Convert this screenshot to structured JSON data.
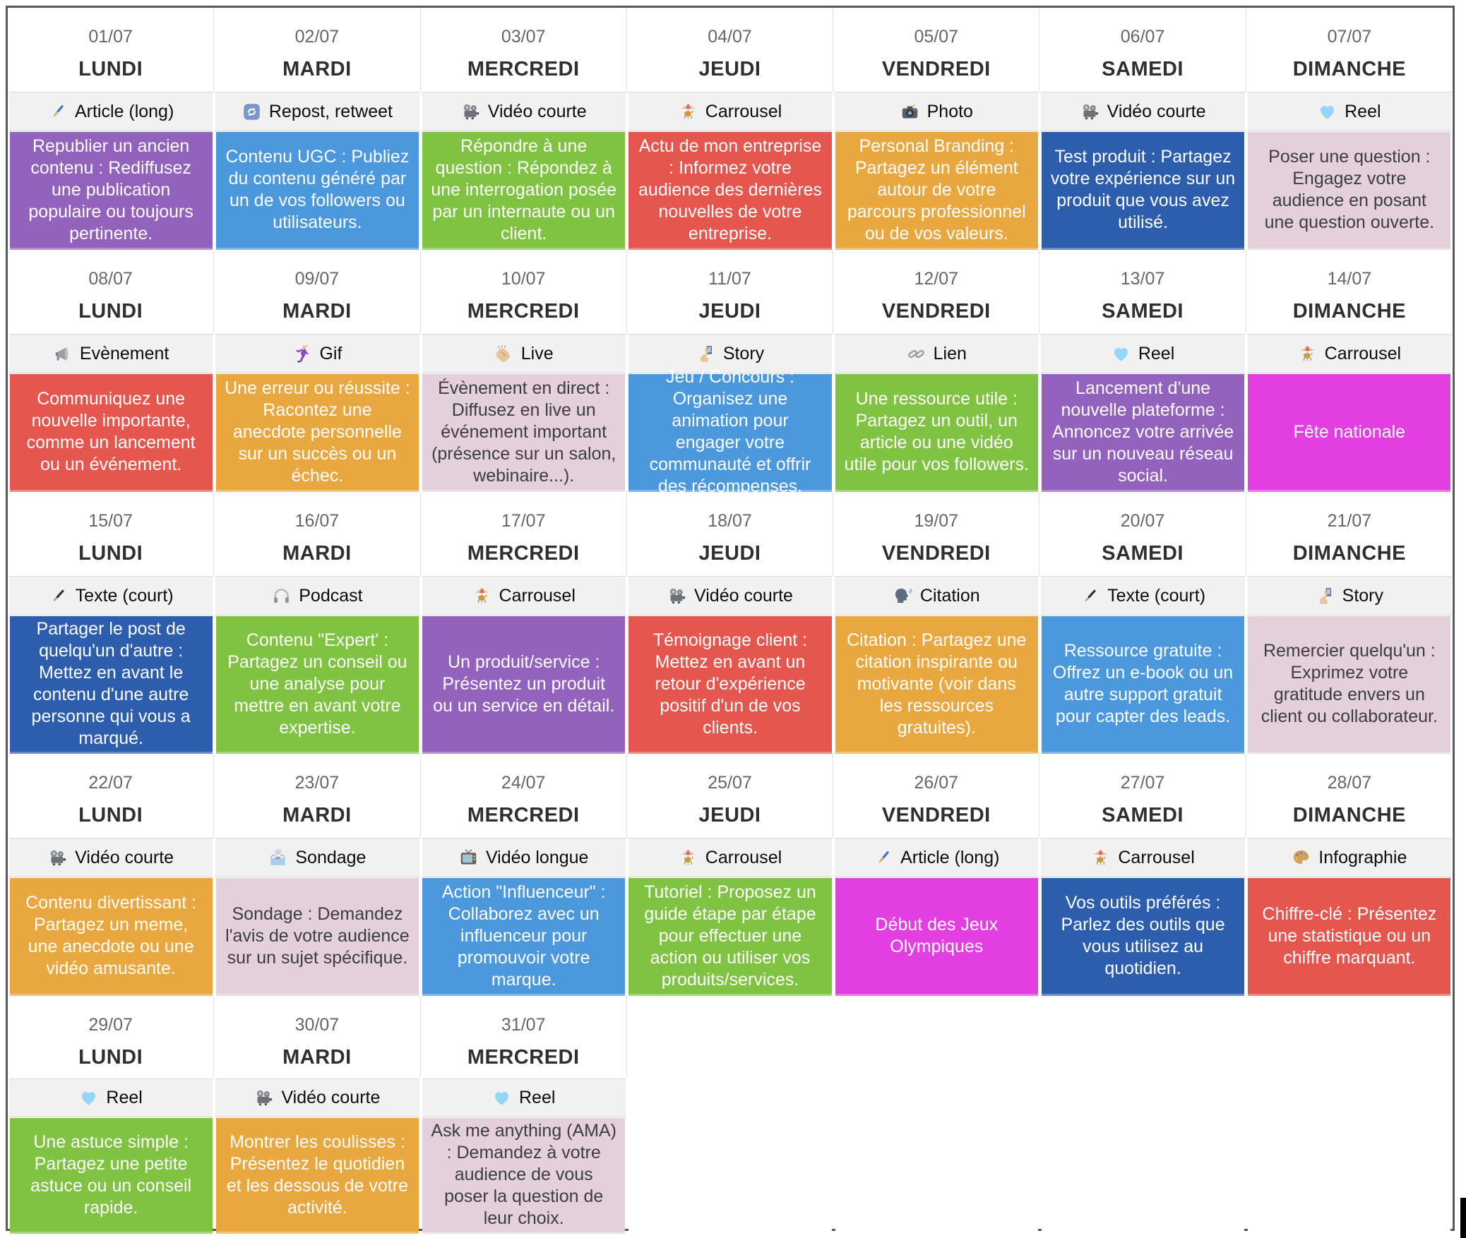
{
  "calendar": {
    "colors": {
      "purple": "#9362BD",
      "blue": "#4B98DC",
      "green": "#80C241",
      "red": "#E4564E",
      "orange": "#E9A83F",
      "darkblue": "#2D5DAD",
      "lavender": "#E3D0DA",
      "magenta": "#E23EE2"
    },
    "weeks": [
      {
        "days": [
          {
            "date": "01/07",
            "day": "LUNDI",
            "type": {
              "icon": "paintbrush-icon",
              "label": "Article (long)"
            },
            "content": {
              "color": "purple",
              "text": "Republier un ancien contenu : Rediffusez une publication populaire ou toujours pertinente."
            }
          },
          {
            "date": "02/07",
            "day": "MARDI",
            "type": {
              "icon": "repeat-icon",
              "label": "Repost, retweet"
            },
            "content": {
              "color": "blue",
              "text": "Contenu UGC :  Publiez du contenu généré par un de vos followers ou utilisateurs."
            }
          },
          {
            "date": "03/07",
            "day": "MERCREDI",
            "type": {
              "icon": "film-projector-icon",
              "label": "Vidéo courte"
            },
            "content": {
              "color": "green",
              "text": "Répondre à une question : Répondez à une interrogation posée par un internaute ou un client."
            }
          },
          {
            "date": "04/07",
            "day": "JEUDI",
            "type": {
              "icon": "carousel-horse-icon",
              "label": "Carrousel"
            },
            "content": {
              "color": "red",
              "text": "Actu de mon entreprise : Informez votre audience des dernières nouvelles de votre entreprise."
            }
          },
          {
            "date": "05/07",
            "day": "VENDREDI",
            "type": {
              "icon": "camera-flash-icon",
              "label": "Photo"
            },
            "content": {
              "color": "orange",
              "text": "Personal Branding : Partagez un élément autour de votre parcours professionnel ou de vos valeurs."
            }
          },
          {
            "date": "06/07",
            "day": "SAMEDI",
            "type": {
              "icon": "film-projector-icon",
              "label": "Vidéo courte"
            },
            "content": {
              "color": "darkblue",
              "text": "Test produit : Partagez votre expérience sur un produit que vous avez utilisé."
            }
          },
          {
            "date": "07/07",
            "day": "DIMANCHE",
            "type": {
              "icon": "light-blue-heart-icon",
              "label": "Reel"
            },
            "content": {
              "color": "lavender",
              "text": "Poser une question : Engagez votre audience en posant une question ouverte."
            }
          }
        ]
      },
      {
        "days": [
          {
            "date": "08/07",
            "day": "LUNDI",
            "type": {
              "icon": "loudspeaker-icon",
              "label": "Evènement"
            },
            "content": {
              "color": "red",
              "text": "Communiquez une nouvelle importante, comme un lancement ou un événement."
            }
          },
          {
            "date": "09/07",
            "day": "MARDI",
            "type": {
              "icon": "dancer-icon",
              "label": "Gif"
            },
            "content": {
              "color": "orange",
              "text": "Une erreur ou réussite : Racontez une anecdote personnelle sur un succès ou un échec."
            }
          },
          {
            "date": "10/07",
            "day": "MERCREDI",
            "type": {
              "icon": "clapping-hands-icon",
              "label": "Live"
            },
            "content": {
              "color": "lavender",
              "text": "Évènement en direct : Diffusez en live un événement important (présence sur un salon, webinaire...)."
            }
          },
          {
            "date": "11/07",
            "day": "JEUDI",
            "type": {
              "icon": "selfie-icon",
              "label": "Story"
            },
            "content": {
              "color": "blue",
              "text": "Jeu / Concours : Organisez une animation pour engager votre communauté et offrir des récompenses."
            }
          },
          {
            "date": "12/07",
            "day": "VENDREDI",
            "type": {
              "icon": "link-icon",
              "label": "Lien"
            },
            "content": {
              "color": "green",
              "text": "Une ressource utile : Partagez un outil, un article ou une vidéo utile pour vos followers."
            }
          },
          {
            "date": "13/07",
            "day": "SAMEDI",
            "type": {
              "icon": "light-blue-heart-icon",
              "label": "Reel"
            },
            "content": {
              "color": "purple",
              "text": "Lancement d'une nouvelle plateforme : Annoncez votre arrivée sur un nouveau réseau social."
            }
          },
          {
            "date": "14/07",
            "day": "DIMANCHE",
            "type": {
              "icon": "carousel-horse-icon",
              "label": "Carrousel"
            },
            "content": {
              "color": "magenta",
              "text": "Fête nationale"
            }
          }
        ]
      },
      {
        "days": [
          {
            "date": "15/07",
            "day": "LUNDI",
            "type": {
              "icon": "pen-icon",
              "label": "Texte (court)"
            },
            "content": {
              "color": "darkblue",
              "text": "Partager le post de quelqu'un d'autre : Mettez en avant le contenu d'une autre personne qui vous a marqué."
            }
          },
          {
            "date": "16/07",
            "day": "MARDI",
            "type": {
              "icon": "headphones-icon",
              "label": "Podcast"
            },
            "content": {
              "color": "green",
              "text": "Contenu \"Expert' : Partagez un conseil ou une analyse pour mettre en avant votre expertise."
            }
          },
          {
            "date": "17/07",
            "day": "MERCREDI",
            "type": {
              "icon": "carousel-horse-icon",
              "label": "Carrousel"
            },
            "content": {
              "color": "purple",
              "text": "Un produit/service : Présentez un produit ou un service en détail."
            }
          },
          {
            "date": "18/07",
            "day": "JEUDI",
            "type": {
              "icon": "film-projector-icon",
              "label": "Vidéo courte"
            },
            "content": {
              "color": "red",
              "text": "Témoignage client : Mettez en avant un retour d'expérience positif d'un de vos clients."
            }
          },
          {
            "date": "19/07",
            "day": "VENDREDI",
            "type": {
              "icon": "speaking-head-icon",
              "label": "Citation"
            },
            "content": {
              "color": "orange",
              "text": "Citation : Partagez une citation inspirante ou motivante (voir dans les ressources gratuites)."
            }
          },
          {
            "date": "20/07",
            "day": "SAMEDI",
            "type": {
              "icon": "pen-icon",
              "label": "Texte (court)"
            },
            "content": {
              "color": "blue",
              "text": "Ressource gratuite : Offrez un e-book ou un autre support gratuit pour capter des leads."
            }
          },
          {
            "date": "21/07",
            "day": "DIMANCHE",
            "type": {
              "icon": "selfie-icon",
              "label": "Story"
            },
            "content": {
              "color": "lavender",
              "text": "Remercier quelqu'un : Exprimez votre gratitude envers un client ou collaborateur."
            }
          }
        ]
      },
      {
        "days": [
          {
            "date": "22/07",
            "day": "LUNDI",
            "type": {
              "icon": "film-projector-icon",
              "label": "Vidéo courte"
            },
            "content": {
              "color": "orange",
              "text": "Contenu divertissant : Partagez un meme, une anecdote ou une vidéo amusante."
            }
          },
          {
            "date": "23/07",
            "day": "MARDI",
            "type": {
              "icon": "ballot-box-icon",
              "label": "Sondage"
            },
            "content": {
              "color": "lavender",
              "text": "Sondage : Demandez l'avis de votre audience sur un sujet spécifique."
            }
          },
          {
            "date": "24/07",
            "day": "MERCREDI",
            "type": {
              "icon": "television-icon",
              "label": "Vidéo longue"
            },
            "content": {
              "color": "blue",
              "text": "Action \"Influenceur\" : Collaborez avec un influenceur pour promouvoir votre marque."
            }
          },
          {
            "date": "25/07",
            "day": "JEUDI",
            "type": {
              "icon": "carousel-horse-icon",
              "label": "Carrousel"
            },
            "content": {
              "color": "green",
              "text": "Tutoriel : Proposez un guide étape par étape pour effectuer une action ou utiliser vos produits/services."
            }
          },
          {
            "date": "26/07",
            "day": "VENDREDI",
            "type": {
              "icon": "paintbrush-icon",
              "label": "Article (long)"
            },
            "content": {
              "color": "magenta",
              "text": "Début des Jeux Olympiques"
            }
          },
          {
            "date": "27/07",
            "day": "SAMEDI",
            "type": {
              "icon": "carousel-horse-icon",
              "label": "Carrousel"
            },
            "content": {
              "color": "darkblue",
              "text": "Vos outils préférés : Parlez des outils que vous utilisez au quotidien."
            }
          },
          {
            "date": "28/07",
            "day": "DIMANCHE",
            "type": {
              "icon": "palette-icon",
              "label": "Infographie"
            },
            "content": {
              "color": "red",
              "text": "Chiffre-clé :  Présentez une statistique ou un chiffre marquant."
            }
          }
        ]
      },
      {
        "days": [
          {
            "date": "29/07",
            "day": "LUNDI",
            "type": {
              "icon": "light-blue-heart-icon",
              "label": "Reel"
            },
            "content": {
              "color": "green",
              "text": "Une astuce simple : Partagez une petite astuce ou un conseil rapide."
            }
          },
          {
            "date": "30/07",
            "day": "MARDI",
            "type": {
              "icon": "film-projector-icon",
              "label": "Vidéo courte"
            },
            "content": {
              "color": "orange",
              "text": "Montrer les coulisses : Présentez le quotidien et les dessous de votre activité."
            }
          },
          {
            "date": "31/07",
            "day": "MERCREDI",
            "type": {
              "icon": "light-blue-heart-icon",
              "label": "Reel"
            },
            "content": {
              "color": "lavender",
              "text": "Ask me anything (AMA) : Demandez à votre audience de vous poser la question de leur choix."
            }
          },
          null,
          null,
          null,
          null
        ]
      }
    ]
  }
}
